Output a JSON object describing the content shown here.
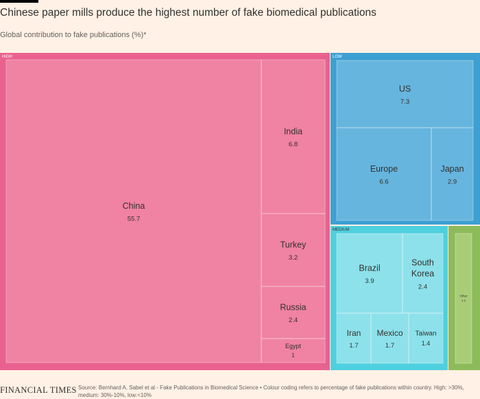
{
  "header": {
    "title": "Chinese paper mills produce the highest number of fake biomedical publications",
    "subtitle": "Global contribution to fake publications (%)*"
  },
  "footer": {
    "logo": "FINANCIAL TIMES",
    "source": "Source: Bernhard A. Sabel et al - Fake Publications in Biomedical Science • Colour coding refers to percentage of fake publications within country. High: >30%, medium: 30%-10%, low:<10%"
  },
  "colors": {
    "high_border": "#E9628F",
    "high_fill": "#F082A3",
    "low_border": "#3D9FD2",
    "low_fill": "#66B5DE",
    "medium_border": "#4FD0DF",
    "medium_fill": "#8DE1EA",
    "other_border": "#8DBB5A",
    "other_fill": "#A9CD77"
  },
  "chart_data": {
    "type": "treemap",
    "unit": "%",
    "groups": [
      {
        "label": "HIGH",
        "items": [
          {
            "name": "China",
            "value": 55.7
          },
          {
            "name": "India",
            "value": 6.8
          },
          {
            "name": "Turkey",
            "value": 3.2
          },
          {
            "name": "Russia",
            "value": 2.4
          },
          {
            "name": "Egypt",
            "value": 1
          }
        ]
      },
      {
        "label": "LOW",
        "items": [
          {
            "name": "US",
            "value": 7.3
          },
          {
            "name": "Europe",
            "value": 6.6
          },
          {
            "name": "Japan",
            "value": 2.9
          }
        ]
      },
      {
        "label": "MEDIUM",
        "items": [
          {
            "name": "Brazil",
            "value": 3.9
          },
          {
            "name": "South Korea",
            "value": 2.4
          },
          {
            "name": "Iran",
            "value": 1.7
          },
          {
            "name": "Mexico",
            "value": 1.7
          },
          {
            "name": "Taiwan",
            "value": 1.4
          }
        ]
      },
      {
        "label": "",
        "items": [
          {
            "name": "Other",
            "value": 1.1
          }
        ]
      }
    ]
  }
}
